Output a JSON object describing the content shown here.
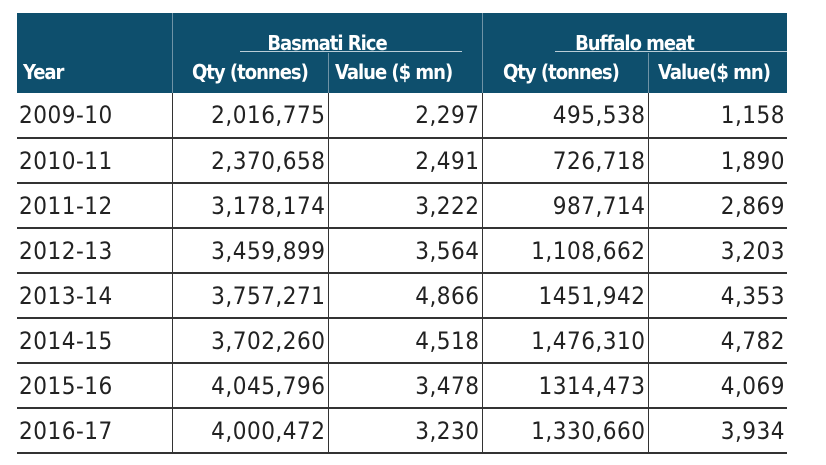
{
  "chart_data": {
    "type": "table",
    "header": {
      "year": "Year",
      "groups": [
        "Basmati Rice",
        "Buffalo meat"
      ],
      "columns": [
        "Qty (tonnes)",
        "Value ($ mn)",
        "Qty (tonnes)",
        "Value($ mn)"
      ]
    },
    "rows": [
      [
        "2009-10",
        "2,016,775",
        "2,297",
        "495,538",
        "1,158"
      ],
      [
        "2010-11",
        "2,370,658",
        "2,491",
        "726,718",
        "1,890"
      ],
      [
        "2011-12",
        "3,178,174",
        "3,222",
        "987,714",
        "2,869"
      ],
      [
        "2012-13",
        "3,459,899",
        "3,564",
        "1,108,662",
        "3,203"
      ],
      [
        "2013-14",
        "3,757,271",
        "4,866",
        "1451,942",
        "4,353"
      ],
      [
        "2014-15",
        "3,702,260",
        "4,518",
        "1,476,310",
        "4,782"
      ],
      [
        "2015-16",
        "4,045,796",
        "3,478",
        "1314,473",
        "4,069"
      ],
      [
        "2016-17",
        "4,000,472",
        "3,230",
        "1,330,660",
        "3,934"
      ]
    ],
    "colors": {
      "header_bg": "#0e4f6d",
      "header_text": "#ffffff"
    }
  }
}
